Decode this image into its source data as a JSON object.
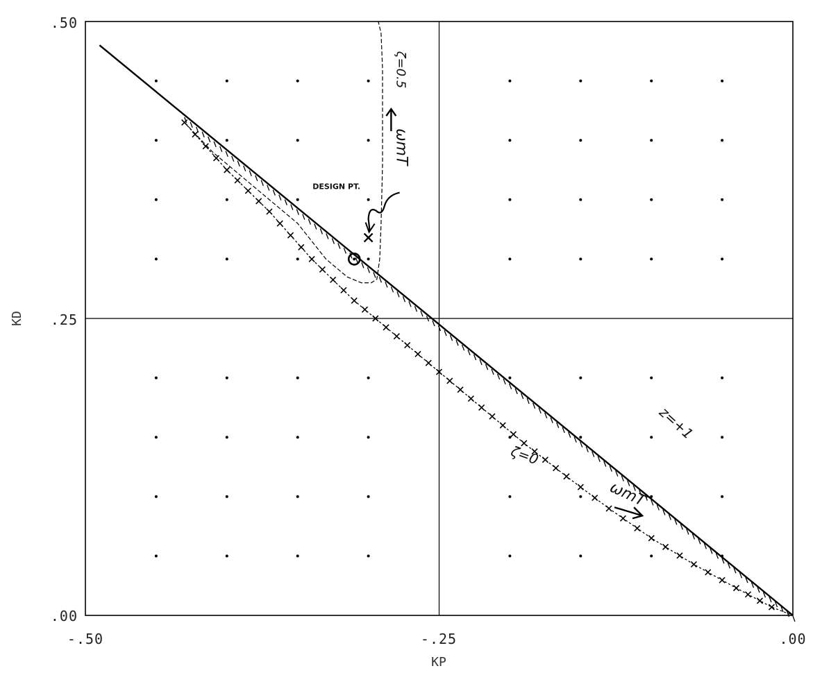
{
  "chart_data": {
    "type": "line",
    "xlabel": "KP",
    "ylabel": "KD",
    "xlim": [
      -0.5,
      0.0
    ],
    "ylim": [
      0.0,
      0.5
    ],
    "x_ticks": [
      "-.50",
      "-.25",
      ".00"
    ],
    "y_ticks": [
      ".50",
      ".25",
      ".00"
    ],
    "grid": "dots",
    "series": [
      {
        "name": "z=+1",
        "style": "solid",
        "x": [
          -0.49,
          -0.25,
          0.0
        ],
        "y": [
          0.48,
          0.245,
          0.0
        ]
      },
      {
        "name": "ζ=0",
        "style": "x-marked",
        "x": [
          -0.43,
          -0.4,
          -0.37,
          -0.34,
          -0.31,
          -0.28,
          -0.25,
          -0.22,
          -0.19,
          -0.16,
          -0.13,
          -0.1,
          -0.07,
          -0.04,
          -0.015,
          0.0
        ],
        "y": [
          0.415,
          0.375,
          0.34,
          0.3,
          0.265,
          0.235,
          0.205,
          0.175,
          0.145,
          0.117,
          0.09,
          0.065,
          0.043,
          0.023,
          0.007,
          0.0
        ]
      },
      {
        "name": "ζ=0.5",
        "style": "dashed",
        "x": [
          -0.43,
          -0.41,
          -0.38,
          -0.35,
          -0.33,
          -0.315,
          -0.305,
          -0.298,
          -0.294,
          -0.292,
          -0.291,
          -0.29,
          -0.29,
          -0.29,
          -0.291,
          -0.293
        ],
        "y": [
          0.415,
          0.39,
          0.36,
          0.33,
          0.3,
          0.285,
          0.28,
          0.28,
          0.283,
          0.3,
          0.33,
          0.38,
          0.42,
          0.46,
          0.49,
          0.5
        ]
      }
    ],
    "annotations": [
      {
        "text": "DESIGN PT.",
        "x": -0.31,
        "y": 0.318
      },
      {
        "text": "z=+1",
        "x": -0.095,
        "y": 0.17
      },
      {
        "text": "ζ=0",
        "x": -0.2,
        "y": 0.135
      },
      {
        "text": "ζ=0.5",
        "x": -0.28,
        "y": 0.475
      },
      {
        "text": "ωmT",
        "x": -0.13,
        "y": 0.105
      },
      {
        "text": "ωmT",
        "x": -0.28,
        "y": 0.41
      }
    ],
    "design_point": {
      "x": -0.31,
      "y": 0.3
    },
    "design_marker": {
      "x": -0.3,
      "y": 0.318
    }
  }
}
